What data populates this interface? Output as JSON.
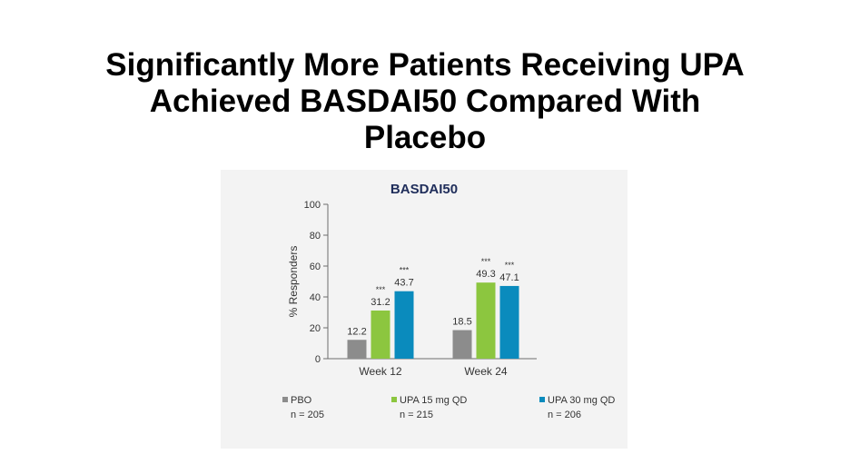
{
  "slide": {
    "title_lines": [
      "Significantly More Patients Receiving UPA",
      "Achieved BASDAI50 Compared With",
      "Placebo"
    ]
  },
  "chart_data": {
    "type": "bar",
    "title": "BASDAI50",
    "xlabel": "",
    "ylabel": "% Responders",
    "ylim": [
      0,
      100
    ],
    "yticks": [
      0,
      20,
      40,
      60,
      80,
      100
    ],
    "categories": [
      "Week 12",
      "Week 24"
    ],
    "series": [
      {
        "name": "PBO",
        "n_label": "n = 205",
        "color": "#8c8c8c",
        "values": [
          12.2,
          18.5
        ],
        "value_labels": [
          "12.2",
          "18.5"
        ],
        "significance": [
          "",
          ""
        ]
      },
      {
        "name": "UPA 15 mg QD",
        "n_label": "n = 215",
        "color": "#8cc63f",
        "values": [
          31.2,
          49.3
        ],
        "value_labels": [
          "31.2",
          "49.3"
        ],
        "significance": [
          "***",
          "***"
        ]
      },
      {
        "name": "UPA 30 mg QD",
        "n_label": "n = 206",
        "color": "#0a8bbd",
        "values": [
          43.7,
          47.1
        ],
        "value_labels": [
          "43.7",
          "47.1"
        ],
        "significance": [
          "***",
          "***"
        ]
      }
    ],
    "legend_position": "bottom"
  }
}
